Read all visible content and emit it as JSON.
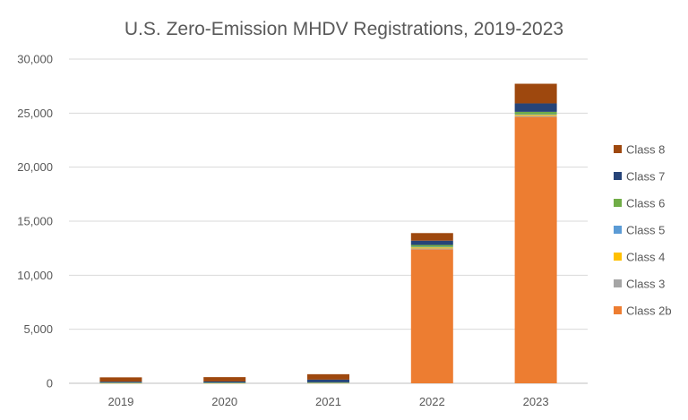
{
  "chart_data": {
    "type": "bar",
    "stacked": true,
    "title": "U.S. Zero-Emission MHDV Registrations, 2019-2023",
    "categories": [
      "2019",
      "2020",
      "2021",
      "2022",
      "2023"
    ],
    "ylim": [
      0,
      30000
    ],
    "yticks": [
      "0",
      "5,000",
      "10,000",
      "15,000",
      "20,000",
      "25,000",
      "30,000"
    ],
    "ytick_values": [
      0,
      5000,
      10000,
      15000,
      20000,
      25000,
      30000
    ],
    "grid": true,
    "legend_position": "right",
    "series": [
      {
        "name": "Class 2b",
        "color": "#ED7D31",
        "values": [
          0,
          0,
          0,
          12400,
          24650
        ]
      },
      {
        "name": "Class 3",
        "color": "#A5A5A5",
        "values": [
          0,
          0,
          0,
          80,
          100
        ]
      },
      {
        "name": "Class 4",
        "color": "#FFC000",
        "values": [
          20,
          20,
          30,
          100,
          100
        ]
      },
      {
        "name": "Class 5",
        "color": "#5B9BD5",
        "values": [
          20,
          20,
          30,
          50,
          50
        ]
      },
      {
        "name": "Class 6",
        "color": "#70AD47",
        "values": [
          30,
          30,
          30,
          170,
          220
        ]
      },
      {
        "name": "Class 7",
        "color": "#264478",
        "values": [
          80,
          100,
          250,
          400,
          780
        ]
      },
      {
        "name": "Class 8",
        "color": "#9E480E",
        "values": [
          400,
          400,
          500,
          700,
          1820
        ]
      }
    ]
  }
}
